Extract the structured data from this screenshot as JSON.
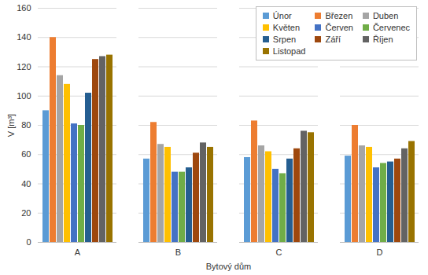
{
  "chart_data": {
    "type": "bar",
    "x_label": "Bytový dům",
    "y_label": "V [m³]",
    "categories": [
      "A",
      "B",
      "C",
      "D"
    ],
    "series": [
      {
        "name": "Únor",
        "color": "#5b9bd5",
        "values": [
          90,
          57,
          58,
          59
        ]
      },
      {
        "name": "Březen",
        "color": "#ed7d31",
        "values": [
          140,
          82,
          83,
          80
        ]
      },
      {
        "name": "Duben",
        "color": "#a5a5a5",
        "values": [
          114,
          67,
          66,
          66
        ]
      },
      {
        "name": "Květen",
        "color": "#ffc000",
        "values": [
          108,
          65,
          62,
          65
        ]
      },
      {
        "name": "Červen",
        "color": "#4472c4",
        "values": [
          81,
          48,
          50,
          51
        ]
      },
      {
        "name": "Červenec",
        "color": "#70ad47",
        "values": [
          80,
          48,
          47,
          54
        ]
      },
      {
        "name": "Srpen",
        "color": "#255e91",
        "values": [
          102,
          51,
          57,
          55
        ]
      },
      {
        "name": "Září",
        "color": "#9e480e",
        "values": [
          125,
          61,
          64,
          57
        ]
      },
      {
        "name": "Říjen",
        "color": "#636363",
        "values": [
          127,
          68,
          76,
          64
        ]
      },
      {
        "name": "Listopad",
        "color": "#997300",
        "values": [
          128,
          65,
          75,
          69
        ]
      }
    ],
    "ylim": [
      0,
      160
    ],
    "yticks": [
      0,
      20,
      40,
      60,
      80,
      100,
      120,
      140,
      160
    ],
    "grid": true,
    "legend": "top-right"
  }
}
